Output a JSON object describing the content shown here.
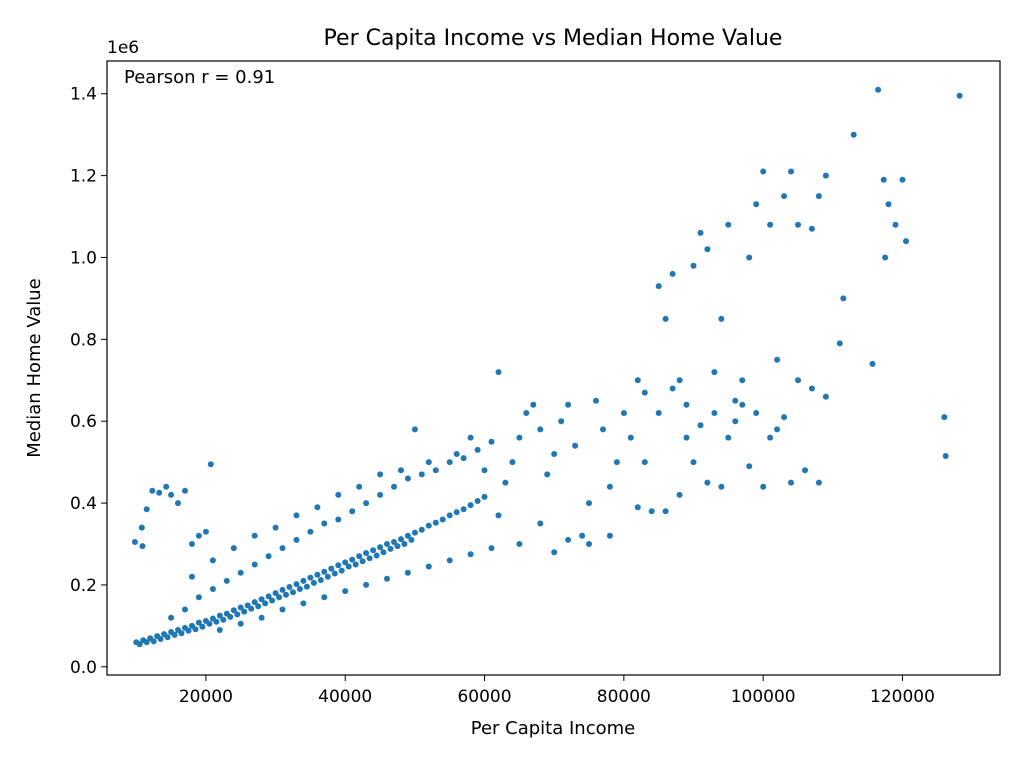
{
  "chart_data": {
    "type": "scatter",
    "title": "Per Capita Income vs Median Home Value",
    "xlabel": "Per Capita Income",
    "ylabel": "Median Home Value",
    "y_offset_text": "1e6",
    "annotation": "Pearson r = 0.91",
    "xlim": [
      5800,
      134000
    ],
    "ylim": [
      -20000,
      1480000
    ],
    "xticks": [
      20000,
      40000,
      60000,
      80000,
      100000,
      120000
    ],
    "xtick_labels": [
      "20000",
      "40000",
      "60000",
      "80000",
      "100000",
      "120000"
    ],
    "yticks": [
      0,
      200000,
      400000,
      600000,
      800000,
      1000000,
      1200000,
      1400000
    ],
    "ytick_labels": [
      "0.0",
      "0.2",
      "0.4",
      "0.6",
      "0.8",
      "1.0",
      "1.2",
      "1.4"
    ],
    "grid": false,
    "point_color": "#1f77b4",
    "points": [
      [
        9800,
        305000
      ],
      [
        10800,
        340000
      ],
      [
        10900,
        295000
      ],
      [
        11500,
        385000
      ],
      [
        12300,
        430000
      ],
      [
        13300,
        425000
      ],
      [
        14300,
        440000
      ],
      [
        15000,
        420000
      ],
      [
        16000,
        400000
      ],
      [
        17000,
        430000
      ],
      [
        18000,
        300000
      ],
      [
        19000,
        320000
      ],
      [
        20000,
        330000
      ],
      [
        20700,
        495000
      ],
      [
        10000,
        60000
      ],
      [
        10500,
        55000
      ],
      [
        11000,
        65000
      ],
      [
        11500,
        60000
      ],
      [
        12000,
        70000
      ],
      [
        12500,
        62000
      ],
      [
        13000,
        75000
      ],
      [
        13500,
        68000
      ],
      [
        14000,
        80000
      ],
      [
        14500,
        72000
      ],
      [
        15000,
        85000
      ],
      [
        15500,
        78000
      ],
      [
        16000,
        90000
      ],
      [
        16500,
        82000
      ],
      [
        17000,
        95000
      ],
      [
        17500,
        88000
      ],
      [
        18000,
        100000
      ],
      [
        18500,
        92000
      ],
      [
        19000,
        108000
      ],
      [
        19500,
        98000
      ],
      [
        20000,
        112000
      ],
      [
        20500,
        105000
      ],
      [
        21000,
        118000
      ],
      [
        21500,
        110000
      ],
      [
        22000,
        125000
      ],
      [
        22500,
        115000
      ],
      [
        23000,
        130000
      ],
      [
        23500,
        122000
      ],
      [
        24000,
        138000
      ],
      [
        24500,
        128000
      ],
      [
        25000,
        145000
      ],
      [
        25500,
        135000
      ],
      [
        26000,
        150000
      ],
      [
        26500,
        142000
      ],
      [
        27000,
        158000
      ],
      [
        27500,
        148000
      ],
      [
        28000,
        165000
      ],
      [
        28500,
        155000
      ],
      [
        29000,
        172000
      ],
      [
        29500,
        162000
      ],
      [
        30000,
        180000
      ],
      [
        30500,
        170000
      ],
      [
        31000,
        188000
      ],
      [
        31500,
        176000
      ],
      [
        32000,
        195000
      ],
      [
        32500,
        182000
      ],
      [
        33000,
        202000
      ],
      [
        33500,
        190000
      ],
      [
        34000,
        210000
      ],
      [
        34500,
        196000
      ],
      [
        35000,
        218000
      ],
      [
        35500,
        205000
      ],
      [
        36000,
        225000
      ],
      [
        36500,
        212000
      ],
      [
        37000,
        232000
      ],
      [
        37500,
        220000
      ],
      [
        38000,
        240000
      ],
      [
        38500,
        228000
      ],
      [
        39000,
        248000
      ],
      [
        39500,
        235000
      ],
      [
        40000,
        255000
      ],
      [
        40500,
        245000
      ],
      [
        41000,
        262000
      ],
      [
        41500,
        250000
      ],
      [
        42000,
        270000
      ],
      [
        42500,
        258000
      ],
      [
        43000,
        278000
      ],
      [
        43500,
        265000
      ],
      [
        44000,
        285000
      ],
      [
        44500,
        272000
      ],
      [
        45000,
        292000
      ],
      [
        45500,
        280000
      ],
      [
        46000,
        300000
      ],
      [
        46500,
        288000
      ],
      [
        47000,
        305000
      ],
      [
        47500,
        295000
      ],
      [
        48000,
        312000
      ],
      [
        48500,
        300000
      ],
      [
        49000,
        320000
      ],
      [
        49500,
        310000
      ],
      [
        50000,
        328000
      ],
      [
        51000,
        335000
      ],
      [
        52000,
        345000
      ],
      [
        53000,
        352000
      ],
      [
        54000,
        360000
      ],
      [
        55000,
        370000
      ],
      [
        56000,
        378000
      ],
      [
        57000,
        385000
      ],
      [
        58000,
        395000
      ],
      [
        59000,
        405000
      ],
      [
        60000,
        415000
      ],
      [
        15000,
        120000
      ],
      [
        17000,
        140000
      ],
      [
        19000,
        170000
      ],
      [
        21000,
        190000
      ],
      [
        23000,
        210000
      ],
      [
        25000,
        230000
      ],
      [
        27000,
        250000
      ],
      [
        29000,
        270000
      ],
      [
        31000,
        290000
      ],
      [
        33000,
        310000
      ],
      [
        35000,
        330000
      ],
      [
        37000,
        350000
      ],
      [
        39000,
        360000
      ],
      [
        41000,
        380000
      ],
      [
        43000,
        400000
      ],
      [
        45000,
        420000
      ],
      [
        47000,
        440000
      ],
      [
        49000,
        460000
      ],
      [
        51000,
        470000
      ],
      [
        53000,
        480000
      ],
      [
        55000,
        500000
      ],
      [
        57000,
        510000
      ],
      [
        59000,
        530000
      ],
      [
        61000,
        550000
      ],
      [
        22000,
        90000
      ],
      [
        25000,
        105000
      ],
      [
        28000,
        120000
      ],
      [
        31000,
        140000
      ],
      [
        34000,
        155000
      ],
      [
        37000,
        170000
      ],
      [
        40000,
        185000
      ],
      [
        43000,
        200000
      ],
      [
        46000,
        215000
      ],
      [
        49000,
        230000
      ],
      [
        52000,
        245000
      ],
      [
        55000,
        260000
      ],
      [
        58000,
        275000
      ],
      [
        61000,
        290000
      ],
      [
        18000,
        220000
      ],
      [
        21000,
        260000
      ],
      [
        24000,
        290000
      ],
      [
        27000,
        320000
      ],
      [
        30000,
        340000
      ],
      [
        33000,
        370000
      ],
      [
        36000,
        390000
      ],
      [
        39000,
        420000
      ],
      [
        42000,
        440000
      ],
      [
        45000,
        470000
      ],
      [
        48000,
        480000
      ],
      [
        50000,
        580000
      ],
      [
        52000,
        500000
      ],
      [
        56000,
        520000
      ],
      [
        58000,
        560000
      ],
      [
        60000,
        480000
      ],
      [
        62000,
        720000
      ],
      [
        63000,
        450000
      ],
      [
        64000,
        500000
      ],
      [
        65000,
        560000
      ],
      [
        66000,
        620000
      ],
      [
        67000,
        640000
      ],
      [
        68000,
        580000
      ],
      [
        69000,
        470000
      ],
      [
        70000,
        520000
      ],
      [
        71000,
        600000
      ],
      [
        72000,
        640000
      ],
      [
        73000,
        540000
      ],
      [
        74000,
        320000
      ],
      [
        75000,
        400000
      ],
      [
        76000,
        650000
      ],
      [
        77000,
        580000
      ],
      [
        78000,
        440000
      ],
      [
        79000,
        500000
      ],
      [
        80000,
        620000
      ],
      [
        81000,
        560000
      ],
      [
        82000,
        700000
      ],
      [
        83000,
        500000
      ],
      [
        84000,
        380000
      ],
      [
        85000,
        930000
      ],
      [
        86000,
        850000
      ],
      [
        87000,
        960000
      ],
      [
        88000,
        700000
      ],
      [
        89000,
        640000
      ],
      [
        90000,
        980000
      ],
      [
        91000,
        1060000
      ],
      [
        92000,
        1020000
      ],
      [
        93000,
        720000
      ],
      [
        94000,
        850000
      ],
      [
        95000,
        1080000
      ],
      [
        96000,
        650000
      ],
      [
        97000,
        700000
      ],
      [
        98000,
        1000000
      ],
      [
        99000,
        1130000
      ],
      [
        100000,
        1210000
      ],
      [
        101000,
        1080000
      ],
      [
        102000,
        750000
      ],
      [
        103000,
        1150000
      ],
      [
        104000,
        1210000
      ],
      [
        105000,
        1080000
      ],
      [
        107000,
        1070000
      ],
      [
        108000,
        1150000
      ],
      [
        109000,
        1200000
      ],
      [
        111000,
        790000
      ],
      [
        111500,
        900000
      ],
      [
        113000,
        1300000
      ],
      [
        115700,
        740000
      ],
      [
        116500,
        1410000
      ],
      [
        117300,
        1190000
      ],
      [
        117500,
        1000000
      ],
      [
        118000,
        1130000
      ],
      [
        119000,
        1080000
      ],
      [
        120000,
        1190000
      ],
      [
        120500,
        1040000
      ],
      [
        126000,
        610000
      ],
      [
        126200,
        515000
      ],
      [
        128200,
        1395000
      ],
      [
        62000,
        370000
      ],
      [
        65000,
        300000
      ],
      [
        68000,
        350000
      ],
      [
        70000,
        280000
      ],
      [
        72000,
        310000
      ],
      [
        75000,
        300000
      ],
      [
        78000,
        320000
      ],
      [
        82000,
        390000
      ],
      [
        86000,
        380000
      ],
      [
        88000,
        420000
      ],
      [
        90000,
        500000
      ],
      [
        92000,
        450000
      ],
      [
        94000,
        440000
      ],
      [
        96000,
        600000
      ],
      [
        98000,
        490000
      ],
      [
        100000,
        440000
      ],
      [
        102000,
        580000
      ],
      [
        104000,
        450000
      ],
      [
        106000,
        480000
      ],
      [
        108000,
        450000
      ],
      [
        83000,
        670000
      ],
      [
        85000,
        620000
      ],
      [
        87000,
        680000
      ],
      [
        89000,
        560000
      ],
      [
        91000,
        590000
      ],
      [
        93000,
        620000
      ],
      [
        95000,
        560000
      ],
      [
        97000,
        640000
      ],
      [
        99000,
        620000
      ],
      [
        101000,
        560000
      ],
      [
        103000,
        610000
      ],
      [
        105000,
        700000
      ],
      [
        107000,
        680000
      ],
      [
        109000,
        660000
      ]
    ]
  }
}
